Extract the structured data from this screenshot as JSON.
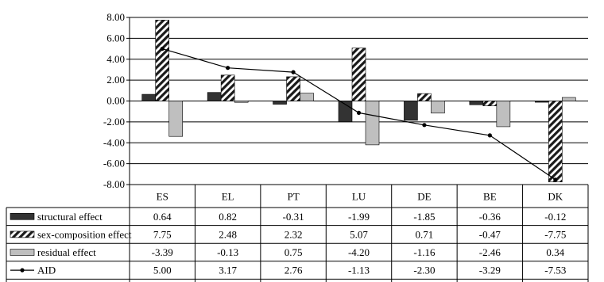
{
  "chart_data": {
    "type": "bar",
    "categories": [
      "ES",
      "EL",
      "PT",
      "LU",
      "DE",
      "BE",
      "DK"
    ],
    "ylim": [
      -8,
      8
    ],
    "ytick_step": 2,
    "ytick_labels": [
      "8.00",
      "6.00",
      "4.00",
      "2.00",
      "0.00",
      "-2.00",
      "-4.00",
      "-6.00",
      "-8.00"
    ],
    "grid": true,
    "legend_placement": "data-table-left",
    "series": [
      {
        "name": "structural effect",
        "mark": "bar",
        "fill": "#333333",
        "values": [
          0.64,
          0.82,
          -0.31,
          -1.99,
          -1.85,
          -0.36,
          -0.12
        ],
        "labels": [
          "0.64",
          "0.82",
          "-0.31",
          "-1.99",
          "-1.85",
          "-0.36",
          "-0.12"
        ]
      },
      {
        "name": "sex-composition effect",
        "mark": "bar",
        "fill": "hatched",
        "values": [
          7.75,
          2.48,
          2.32,
          5.07,
          0.71,
          -0.47,
          -7.75
        ],
        "labels": [
          "7.75",
          "2.48",
          "2.32",
          "5.07",
          "0.71",
          "-0.47",
          "-7.75"
        ]
      },
      {
        "name": "residual effect",
        "mark": "bar",
        "fill": "#bfbfbf",
        "values": [
          -3.39,
          -0.13,
          0.75,
          -4.2,
          -1.16,
          -2.46,
          0.34
        ],
        "labels": [
          "-3.39",
          "-0.13",
          "0.75",
          "-4.20",
          "-1.16",
          "-2.46",
          "0.34"
        ]
      },
      {
        "name": "AID",
        "mark": "line",
        "fill": "#000000",
        "values": [
          5.0,
          3.17,
          2.76,
          -1.13,
          -2.3,
          -3.29,
          -7.53
        ],
        "labels": [
          "5.00",
          "3.17",
          "2.76",
          "-1.13",
          "-2.30",
          "-3.29",
          "-7.53"
        ]
      }
    ]
  }
}
